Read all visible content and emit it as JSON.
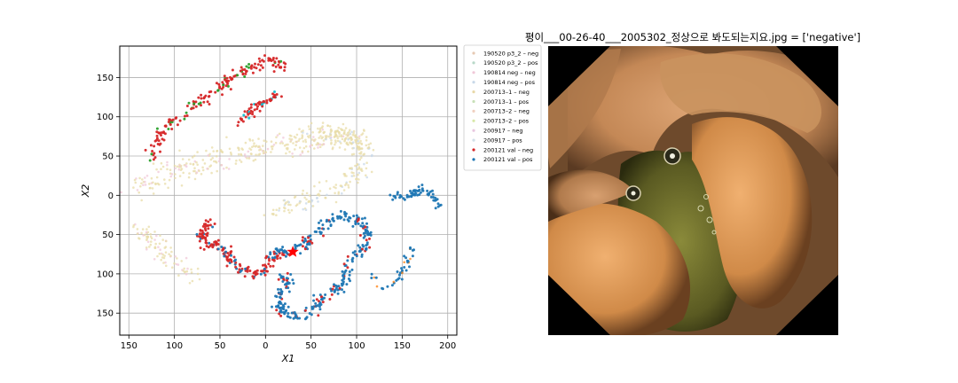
{
  "chart_data": [
    {
      "type": "scatter",
      "title": "",
      "xlabel": "X1",
      "ylabel": "X2",
      "xlim": [
        160,
        -210
      ],
      "ylim": [
        -178,
        190
      ],
      "x_inverted": true,
      "y_tick_labels_absolute": true,
      "x_ticks": [
        150,
        100,
        50,
        0,
        -50,
        -100,
        -150,
        -200
      ],
      "x_tick_labels": [
        "150",
        "100",
        "50",
        "0",
        "50",
        "100",
        "150",
        "200"
      ],
      "y_ticks": [
        150,
        100,
        50,
        0,
        -50,
        -100,
        -150
      ],
      "y_tick_labels": [
        "150",
        "100",
        "50",
        "0",
        "50",
        "100",
        "150"
      ],
      "grid": true,
      "legend_position": "outside-right",
      "legend": [
        {
          "label": "190520 p3_2 – neg",
          "color": "#e6c9b3"
        },
        {
          "label": "190520 p3_2 – pos",
          "color": "#b8d8c8"
        },
        {
          "label": "190814 neg – neg",
          "color": "#f0c8d8"
        },
        {
          "label": "190814 neg – pos",
          "color": "#c8d8e8"
        },
        {
          "label": "200713–1 – neg",
          "color": "#e8d8a8"
        },
        {
          "label": "200713–1 – pos",
          "color": "#c8e0b8"
        },
        {
          "label": "200713–2 – neg",
          "color": "#f0d0c0"
        },
        {
          "label": "200713–2 – pos",
          "color": "#d8e8a8"
        },
        {
          "label": "200917 – neg",
          "color": "#e8c8e0"
        },
        {
          "label": "200917 – pos",
          "color": "#d0e0e8"
        },
        {
          "label": "200121 val – neg",
          "color": "#d62728"
        },
        {
          "label": "200121 val – pos",
          "color": "#1f77b4"
        }
      ],
      "highlight_marker": {
        "shape": "star",
        "x": -30,
        "y": -72,
        "color": "#ff0000"
      },
      "clusters": [
        {
          "name": "arc-top",
          "color": "#d62728",
          "alt_color": "#2ca02c",
          "path": [
            [
              130,
              48
            ],
            [
              118,
              72
            ],
            [
              100,
              95
            ],
            [
              80,
              112
            ],
            [
              62,
              128
            ],
            [
              45,
              142
            ],
            [
              30,
              155
            ],
            [
              15,
              165
            ],
            [
              -5,
              170
            ],
            [
              -22,
              162
            ]
          ],
          "n": 170,
          "spread": 4
        },
        {
          "name": "arc-small",
          "color": "#d62728",
          "alt_color": "#17becf",
          "path": [
            [
              28,
              92
            ],
            [
              18,
              105
            ],
            [
              8,
              115
            ],
            [
              -8,
              125
            ],
            [
              -14,
              128
            ]
          ],
          "n": 55,
          "spread": 3
        },
        {
          "name": "mid-pale",
          "color": "#e8dca8",
          "alt_color": "#f0c8d8",
          "path": [
            [
              142,
              5
            ],
            [
              125,
              20
            ],
            [
              105,
              30
            ],
            [
              80,
              38
            ],
            [
              55,
              45
            ],
            [
              30,
              52
            ],
            [
              5,
              58
            ],
            [
              -25,
              65
            ],
            [
              -50,
              70
            ],
            [
              -75,
              74
            ],
            [
              -100,
              70
            ],
            [
              -108,
              62
            ]
          ],
          "n": 320,
          "spread": 8
        },
        {
          "name": "mid-pale-2",
          "color": "#e8dca8",
          "alt_color": "#c8d8e8",
          "path": [
            [
              -30,
              75
            ],
            [
              -55,
              80
            ],
            [
              -80,
              78
            ],
            [
              -100,
              72
            ],
            [
              -108,
              50
            ],
            [
              -100,
              25
            ],
            [
              -80,
              10
            ],
            [
              -55,
              -2
            ],
            [
              -30,
              -12
            ],
            [
              -5,
              -22
            ]
          ],
          "n": 230,
          "spread": 6
        },
        {
          "name": "left-pale",
          "color": "#e8dca8",
          "alt_color": "#f0c8d8",
          "path": [
            [
              140,
              -40
            ],
            [
              128,
              -55
            ],
            [
              115,
              -68
            ],
            [
              105,
              -85
            ],
            [
              92,
              -95
            ],
            [
              78,
              -100
            ]
          ],
          "n": 90,
          "spread": 6
        },
        {
          "name": "red-loop",
          "color": "#d62728",
          "alt_color": "#1f77b4",
          "path": [
            [
              62,
              -35
            ],
            [
              70,
              -50
            ],
            [
              65,
              -62
            ],
            [
              50,
              -65
            ],
            [
              42,
              -75
            ],
            [
              35,
              -85
            ],
            [
              25,
              -95
            ],
            [
              10,
              -100
            ],
            [
              0,
              -95
            ],
            [
              -5,
              -82
            ],
            [
              -20,
              -72
            ]
          ],
          "n": 170,
          "spread": 3.5
        },
        {
          "name": "blue-snake",
          "color": "#1f77b4",
          "alt_color": "#d62728",
          "path": [
            [
              -5,
              -72
            ],
            [
              -30,
              -72
            ],
            [
              -45,
              -62
            ],
            [
              -55,
              -48
            ],
            [
              -68,
              -35
            ],
            [
              -80,
              -28
            ],
            [
              -95,
              -28
            ],
            [
              -108,
              -38
            ],
            [
              -112,
              -52
            ],
            [
              -108,
              -65
            ],
            [
              -98,
              -78
            ],
            [
              -92,
              -90
            ],
            [
              -88,
              -105
            ],
            [
              -78,
              -120
            ],
            [
              -62,
              -130
            ],
            [
              -55,
              -142
            ],
            [
              -50,
              -150
            ],
            [
              -35,
              -155
            ],
            [
              -22,
              -152
            ],
            [
              -15,
              -140
            ],
            [
              -18,
              -120
            ],
            [
              -25,
              -108
            ],
            [
              -15,
              -100
            ]
          ],
          "n": 340,
          "spread": 3.5
        },
        {
          "name": "blue-right",
          "color": "#1f77b4",
          "alt_color": "#1f77b4",
          "path": [
            [
              -138,
              0
            ],
            [
              -150,
              -2
            ],
            [
              -162,
              3
            ],
            [
              -172,
              8
            ],
            [
              -180,
              3
            ],
            [
              -188,
              -8
            ],
            [
              -192,
              -16
            ]
          ],
          "n": 60,
          "spread": 2.5
        },
        {
          "name": "blue-lower-right",
          "color": "#1f77b4",
          "alt_color": "#ff7f0e",
          "path": [
            [
              -115,
              -95
            ],
            [
              -120,
              -108
            ],
            [
              -132,
              -118
            ],
            [
              -140,
              -112
            ],
            [
              -148,
              -100
            ],
            [
              -155,
              -85
            ],
            [
              -162,
              -65
            ]
          ],
          "n": 40,
          "spread": 2.5
        }
      ]
    }
  ],
  "image_panel": {
    "title": "평이___00-26-40___2005302_정상으로 봐도되는지요.jpg = ['negative']"
  }
}
